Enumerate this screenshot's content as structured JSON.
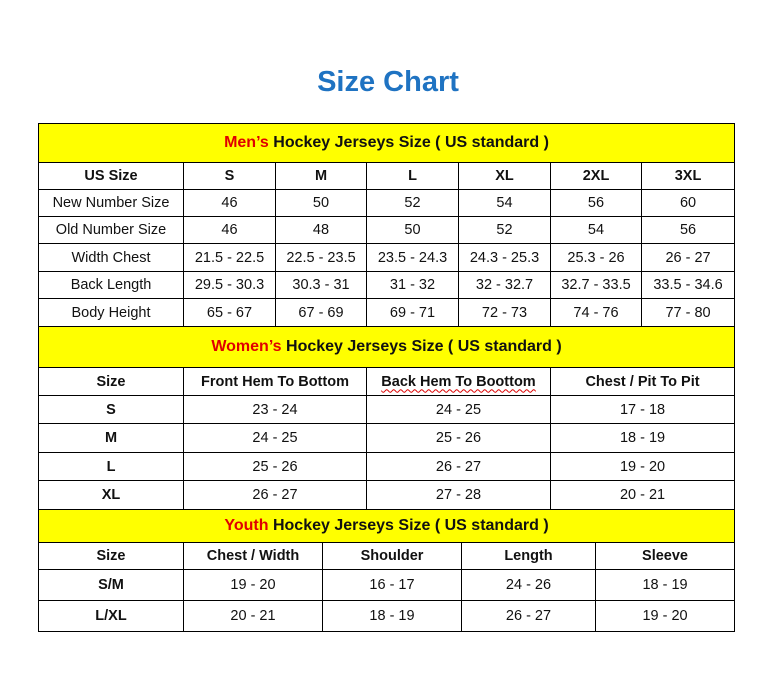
{
  "title": "Size Chart",
  "colors": {
    "title": "#1f73c2",
    "band": "#ffff00",
    "accent": "#e00000"
  },
  "men": {
    "band_accent": "Men’s",
    "band_rest": " Hockey Jerseys Size ( US standard )",
    "headers": [
      "US Size",
      "S",
      "M",
      "L",
      "XL",
      "2XL",
      "3XL"
    ],
    "rows": [
      [
        "New Number Size",
        "46",
        "50",
        "52",
        "54",
        "56",
        "60"
      ],
      [
        "Old Number Size",
        "46",
        "48",
        "50",
        "52",
        "54",
        "56"
      ],
      [
        "Width Chest",
        "21.5 - 22.5",
        "22.5 - 23.5",
        "23.5 - 24.3",
        "24.3 - 25.3",
        "25.3 - 26",
        "26 - 27"
      ],
      [
        "Back Length",
        "29.5 - 30.3",
        "30.3 - 31",
        "31 - 32",
        "32 - 32.7",
        "32.7 - 33.5",
        "33.5 - 34.6"
      ],
      [
        "Body Height",
        "65 - 67",
        "67 - 69",
        "69 - 71",
        "72 - 73",
        "74 - 76",
        "77 - 80"
      ]
    ]
  },
  "women": {
    "band_accent": "Women’s",
    "band_rest": " Hockey Jerseys Size ( US standard )",
    "headers": [
      "Size",
      "Front Hem To Bottom",
      "Back Hem To Boottom",
      "Chest / Pit To Pit"
    ],
    "rows": [
      [
        "S",
        "23 - 24",
        "24 - 25",
        "17 - 18"
      ],
      [
        "M",
        "24 - 25",
        "25 - 26",
        "18 - 19"
      ],
      [
        "L",
        "25 - 26",
        "26 - 27",
        "19 - 20"
      ],
      [
        "XL",
        "26 - 27",
        "27 - 28",
        "20 - 21"
      ]
    ]
  },
  "youth": {
    "band_accent": "Youth",
    "band_rest": " Hockey Jerseys Size ( US standard )",
    "headers": [
      "Size",
      "Chest / Width",
      "Shoulder",
      "Length",
      "Sleeve"
    ],
    "rows": [
      [
        "S/M",
        "19 - 20",
        "16 - 17",
        "24 - 26",
        "18 - 19"
      ],
      [
        "L/XL",
        "20 - 21",
        "18 - 19",
        "26 - 27",
        "19 - 20"
      ]
    ]
  }
}
